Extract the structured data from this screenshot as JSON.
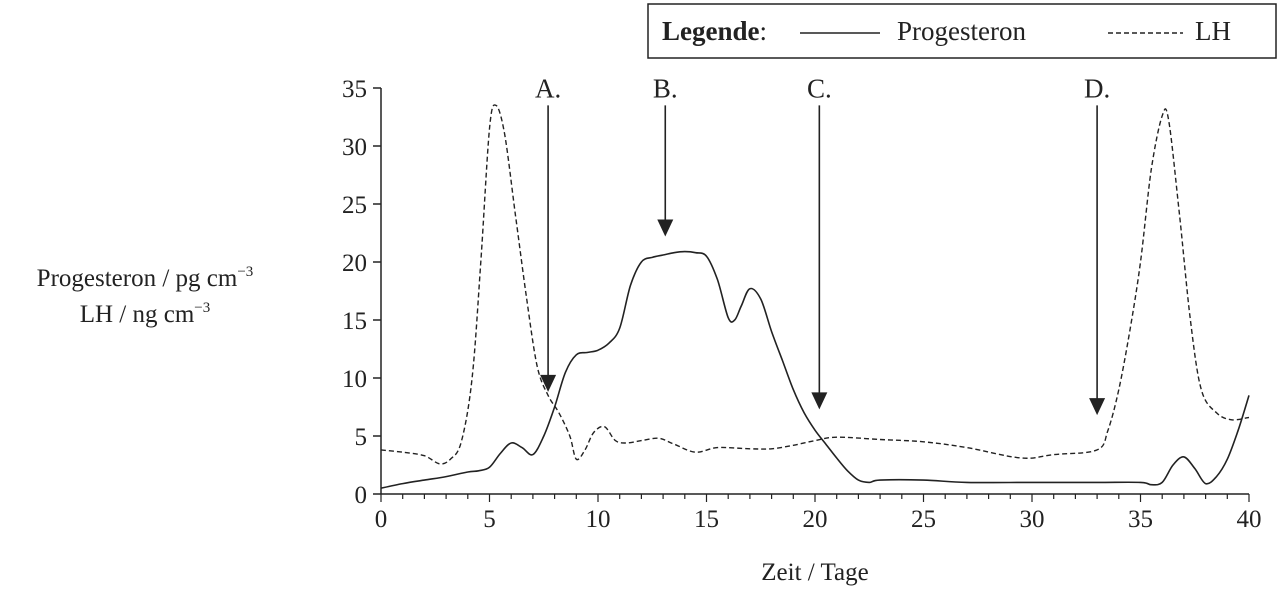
{
  "chart_data": {
    "type": "line",
    "xlabel": "Zeit / Tage",
    "ylabel_lines": [
      "Progesteron / pg cm",
      "LH / ng cm"
    ],
    "ylabel_superscript": "−3",
    "xlim": [
      0,
      40
    ],
    "ylim": [
      0,
      35
    ],
    "xticks": [
      0,
      5,
      10,
      15,
      20,
      25,
      30,
      35,
      40
    ],
    "yticks": [
      0,
      5,
      10,
      15,
      20,
      25,
      30,
      35
    ],
    "grid": false,
    "legend": {
      "title": "Legende",
      "title_suffix": ":",
      "placement": "top-right",
      "entries": [
        {
          "label": "Progesteron",
          "style": "solid"
        },
        {
          "label": "LH",
          "style": "dashed"
        }
      ]
    },
    "series": [
      {
        "name": "Progesteron",
        "style": "solid",
        "x": [
          0,
          1,
          2,
          3,
          4,
          4.5,
          5,
          5.5,
          6,
          6.5,
          7,
          7.5,
          8,
          8.5,
          9,
          9.5,
          10,
          10.5,
          11,
          11.5,
          12,
          12.5,
          13,
          13.5,
          14,
          14.5,
          15,
          15.5,
          16,
          16.3,
          16.6,
          17,
          17.5,
          18,
          18.5,
          19,
          19.5,
          20,
          20.5,
          21,
          21.5,
          22,
          22.5,
          23,
          25,
          27,
          30,
          33,
          35,
          35.5,
          36,
          36.5,
          37,
          37.5,
          38,
          38.5,
          39,
          39.5,
          40
        ],
        "y": [
          0.5,
          0.9,
          1.2,
          1.5,
          1.9,
          2.0,
          2.3,
          3.5,
          4.4,
          4.0,
          3.4,
          5.0,
          7.5,
          10.5,
          12.0,
          12.2,
          12.4,
          13.0,
          14.3,
          18.0,
          20.0,
          20.4,
          20.6,
          20.8,
          20.9,
          20.8,
          20.5,
          18.5,
          15.2,
          15.0,
          16.2,
          17.7,
          16.8,
          14.0,
          11.5,
          9.0,
          7.0,
          5.5,
          4.3,
          3.1,
          2.0,
          1.2,
          1.0,
          1.2,
          1.2,
          1.0,
          1.0,
          1.0,
          1.0,
          0.8,
          1.0,
          2.5,
          3.2,
          2.2,
          0.9,
          1.5,
          3.0,
          5.5,
          8.5
        ]
      },
      {
        "name": "LH",
        "style": "dashed",
        "x": [
          0,
          1,
          2,
          2.7,
          3.2,
          3.7,
          4.2,
          4.6,
          5.0,
          5.3,
          5.7,
          6.2,
          6.7,
          7.2,
          7.7,
          8.2,
          8.7,
          9.0,
          9.4,
          9.8,
          10.3,
          10.8,
          11.3,
          12.0,
          12.8,
          13.5,
          14.5,
          15.5,
          17,
          18,
          19,
          20,
          21,
          23,
          25,
          27,
          29.5,
          31,
          33,
          33.5,
          34,
          34.5,
          35,
          35.5,
          36,
          36.3,
          36.8,
          37.3,
          37.8,
          38.5,
          39.2,
          40
        ],
        "y": [
          3.8,
          3.6,
          3.3,
          2.6,
          3.0,
          4.5,
          10.0,
          20.0,
          31.5,
          33.5,
          31.0,
          24.0,
          17.0,
          11.0,
          8.5,
          7.0,
          5.0,
          3.0,
          3.8,
          5.3,
          5.8,
          4.6,
          4.4,
          4.6,
          4.8,
          4.3,
          3.6,
          4.0,
          3.9,
          3.9,
          4.2,
          4.6,
          4.9,
          4.7,
          4.5,
          4.0,
          3.1,
          3.4,
          3.8,
          5.5,
          9.0,
          14.0,
          20.0,
          28.0,
          32.6,
          32.2,
          24.0,
          15.0,
          9.0,
          7.0,
          6.4,
          6.6
        ]
      }
    ],
    "annotations": [
      {
        "label": "A.",
        "x": 7.7,
        "y_start": 33.5,
        "y_end": 8.8
      },
      {
        "label": "B.",
        "x": 13.1,
        "y_start": 33.5,
        "y_end": 22.2
      },
      {
        "label": "C.",
        "x": 20.2,
        "y_start": 33.5,
        "y_end": 7.3
      },
      {
        "label": "D.",
        "x": 33.0,
        "y_start": 33.5,
        "y_end": 6.8
      }
    ]
  }
}
